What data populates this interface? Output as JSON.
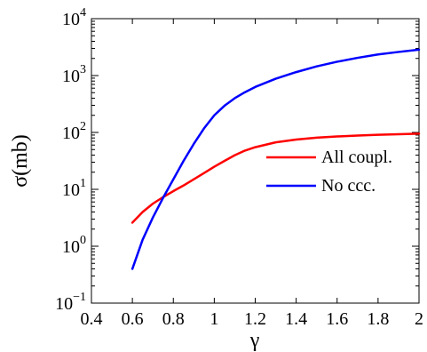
{
  "chart_data": {
    "type": "line",
    "title": "",
    "xlabel": "γ",
    "ylabel": "σ(mb)",
    "xlim": [
      0.4,
      2.0
    ],
    "ylim": [
      0.1,
      10000
    ],
    "yscale": "log",
    "grid": false,
    "legend_position": "right",
    "x_ticks": [
      0.4,
      0.6,
      0.8,
      1.0,
      1.2,
      1.4,
      1.6,
      1.8,
      2.0
    ],
    "x_tick_labels": [
      "0.4",
      "0.6",
      "0.8",
      "1",
      "1.2",
      "1.4",
      "1.6",
      "1.8",
      "2"
    ],
    "y_ticks": [
      {
        "value": 0.1,
        "base": "10",
        "exp": "−1"
      },
      {
        "value": 1,
        "base": "10",
        "exp": "0"
      },
      {
        "value": 10,
        "base": "10",
        "exp": "1"
      },
      {
        "value": 100,
        "base": "10",
        "exp": "2"
      },
      {
        "value": 1000,
        "base": "10",
        "exp": "3"
      },
      {
        "value": 10000,
        "base": "10",
        "exp": "4"
      }
    ],
    "series": [
      {
        "name": "All coupl.",
        "color": "#ff0000",
        "x": [
          0.6,
          0.65,
          0.7,
          0.75,
          0.8,
          0.85,
          0.9,
          0.95,
          1.0,
          1.05,
          1.1,
          1.15,
          1.2,
          1.3,
          1.4,
          1.5,
          1.6,
          1.7,
          1.8,
          1.9,
          2.0
        ],
        "y": [
          2.6,
          4.0,
          5.6,
          7.3,
          9.3,
          11.7,
          15.0,
          19.3,
          25.0,
          31.6,
          39.8,
          48.0,
          55.0,
          67.0,
          75.0,
          81.0,
          85.0,
          88.0,
          91.0,
          93.0,
          95.0
        ]
      },
      {
        "name": "No ccc.",
        "color": "#0000ff",
        "x": [
          0.6,
          0.65,
          0.7,
          0.75,
          0.8,
          0.85,
          0.9,
          0.95,
          1.0,
          1.05,
          1.1,
          1.15,
          1.2,
          1.3,
          1.4,
          1.5,
          1.6,
          1.7,
          1.8,
          1.9,
          2.0
        ],
        "y": [
          0.4,
          1.3,
          3.2,
          7.1,
          15.0,
          31.6,
          63.0,
          118.0,
          200.0,
          295.0,
          400.0,
          510.0,
          630.0,
          880.0,
          1150.0,
          1450.0,
          1750.0,
          2050.0,
          2350.0,
          2600.0,
          2850.0
        ]
      }
    ]
  }
}
